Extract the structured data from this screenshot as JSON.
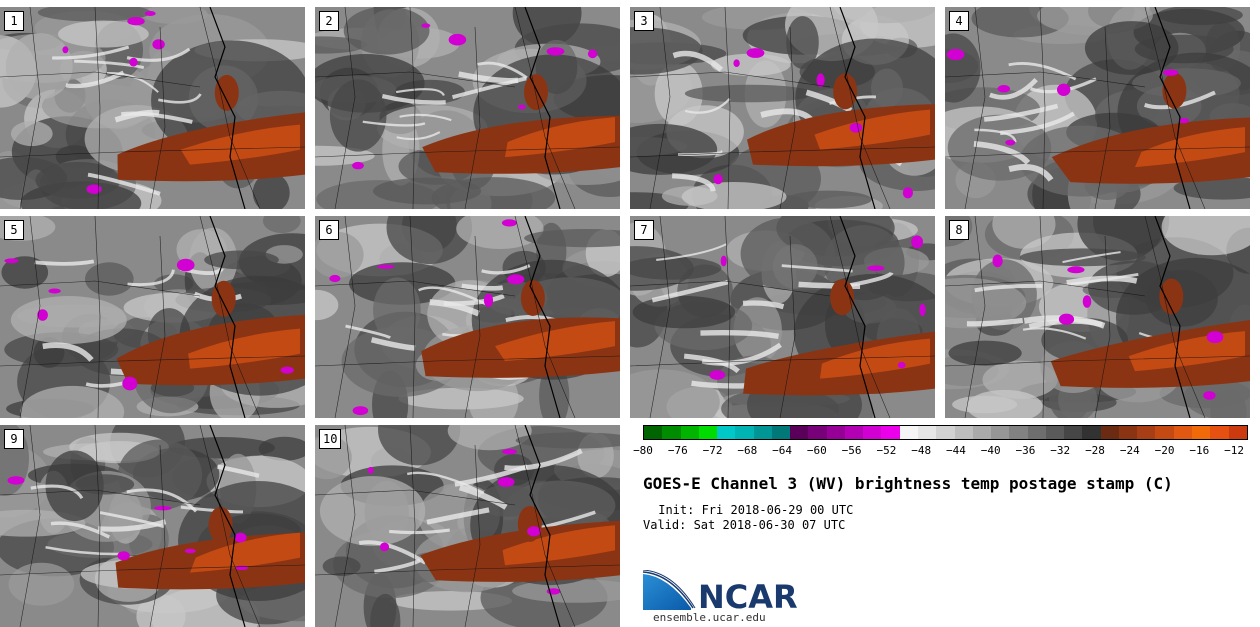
{
  "panels": [
    {
      "label": "1"
    },
    {
      "label": "2"
    },
    {
      "label": "3"
    },
    {
      "label": "4"
    },
    {
      "label": "5"
    },
    {
      "label": "6"
    },
    {
      "label": "7"
    },
    {
      "label": "8"
    },
    {
      "label": "9"
    },
    {
      "label": "10"
    }
  ],
  "colorbar": {
    "ticks": [
      "−80",
      "−76",
      "−72",
      "−68",
      "−64",
      "−60",
      "−56",
      "−52",
      "−48",
      "−44",
      "−40",
      "−36",
      "−32",
      "−28",
      "−24",
      "−20",
      "−16",
      "−12"
    ],
    "colors": [
      "#006400",
      "#008c00",
      "#00b400",
      "#00dc00",
      "#00c8c8",
      "#00b4b4",
      "#009696",
      "#007878",
      "#5a005a",
      "#780078",
      "#960096",
      "#b400b4",
      "#d200d2",
      "#ec00ec",
      "#f5f5f5",
      "#e6e6e6",
      "#d2d2d2",
      "#bebebe",
      "#aaaaaa",
      "#969696",
      "#828282",
      "#6e6e6e",
      "#5a5a5a",
      "#464646",
      "#323232",
      "#6b2a12",
      "#8b3414",
      "#a83e15",
      "#c44a14",
      "#e05812",
      "#f06a0a",
      "#e65010",
      "#cc3a10"
    ]
  },
  "title": "GOES-E Channel 3 (WV) brightness temp postage stamp (C)",
  "init": " Init: Fri 2018-06-29 00 UTC",
  "valid": "Valid: Sat 2018-06-30 07 UTC",
  "logo": {
    "name": "NCAR",
    "url": "ensemble.ucar.edu"
  }
}
